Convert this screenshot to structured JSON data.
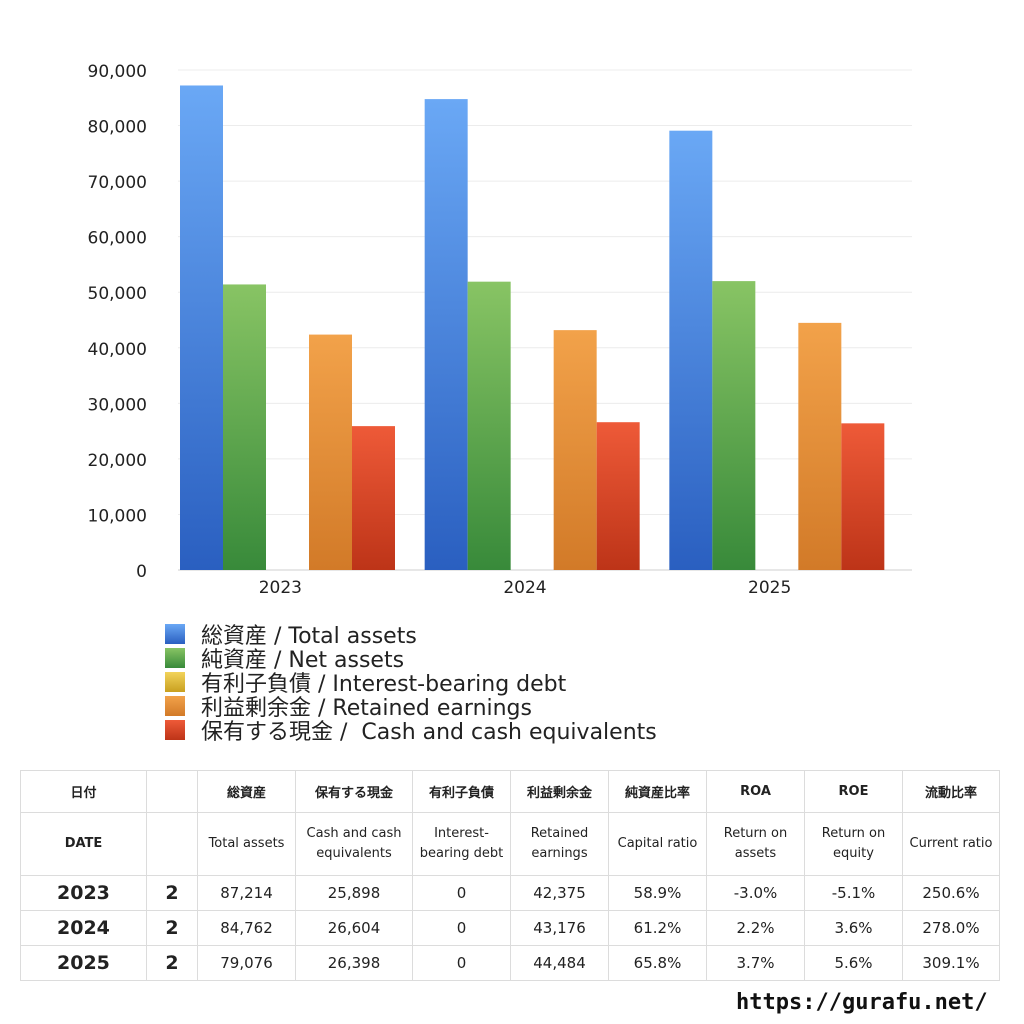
{
  "chart_data": {
    "type": "bar",
    "categories": [
      "2023",
      "2024",
      "2025"
    ],
    "series": [
      {
        "name": "総資産 / Total assets",
        "values": [
          87214,
          84762,
          79076
        ],
        "color_top": "#6aa8f5",
        "color_bottom": "#2a5fc0"
      },
      {
        "name": "純資産 / Net assets",
        "values": [
          51400,
          51900,
          52000
        ],
        "color_top": "#88c464",
        "color_bottom": "#388a3a"
      },
      {
        "name": "有利子負債 / Interest-bearing debt",
        "values": [
          0,
          0,
          0
        ],
        "color_top": "#f2d35a",
        "color_bottom": "#c9a020"
      },
      {
        "name": "利益剰余金 / Retained earnings",
        "values": [
          42375,
          43176,
          44484
        ],
        "color_top": "#f2a24a",
        "color_bottom": "#d27a28"
      },
      {
        "name": "保有する現金 /  Cash and cash equivalents",
        "values": [
          25898,
          26604,
          26398
        ],
        "color_top": "#ee5a38",
        "color_bottom": "#bd3418"
      }
    ],
    "yticks": [
      "0",
      "10,000",
      "20,000",
      "30,000",
      "40,000",
      "50,000",
      "60,000",
      "70,000",
      "80,000",
      "90,000"
    ],
    "ylim": [
      0,
      90000
    ],
    "grid": true,
    "legend_position": "bottom"
  },
  "table": {
    "header_jp": [
      "日付",
      "",
      "総資産",
      "保有する現金",
      "有利子負債",
      "利益剰余金",
      "純資産比率",
      "ROA",
      "ROE",
      "流動比率"
    ],
    "header_en": [
      "DATE",
      "",
      "Total assets",
      "Cash and cash equivalents",
      "Interest-bearing debt",
      "Retained earnings",
      "Capital ratio",
      "Return on assets",
      "Return on equity",
      "Current ratio"
    ],
    "rows": [
      [
        "2023",
        "2",
        "87,214",
        "25,898",
        "0",
        "42,375",
        "58.9%",
        "-3.0%",
        "-5.1%",
        "250.6%"
      ],
      [
        "2024",
        "2",
        "84,762",
        "26,604",
        "0",
        "43,176",
        "61.2%",
        "2.2%",
        "3.6%",
        "278.0%"
      ],
      [
        "2025",
        "2",
        "79,076",
        "26,398",
        "0",
        "44,484",
        "65.8%",
        "3.7%",
        "5.6%",
        "309.1%"
      ]
    ],
    "negative_color": "#d8443a"
  },
  "footer_url": "https://gurafu.net/"
}
